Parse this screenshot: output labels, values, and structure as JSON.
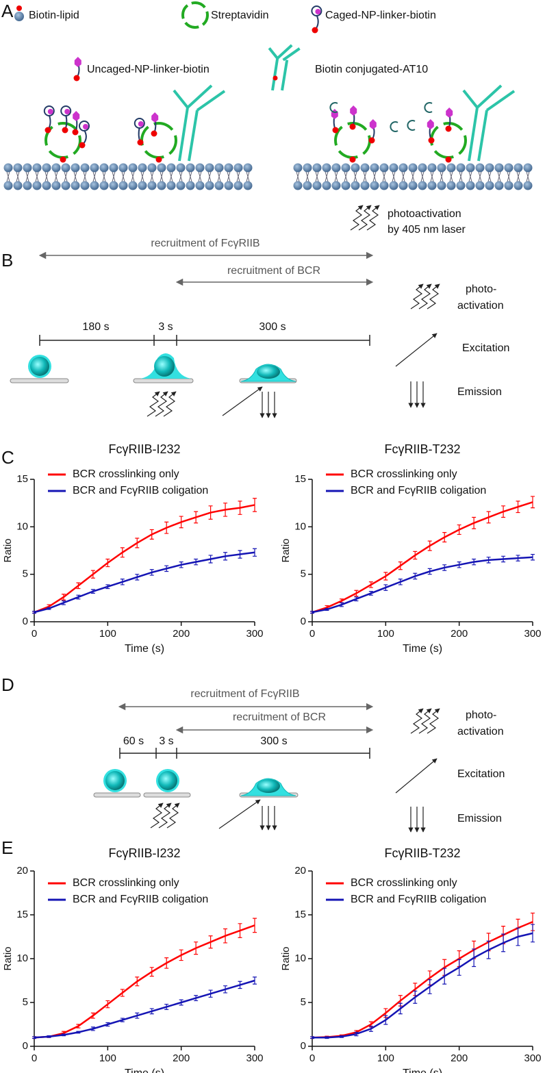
{
  "panels": {
    "a": "A",
    "b": "B",
    "c": "C",
    "d": "D",
    "e": "E"
  },
  "panel_a": {
    "legend": [
      "Biotin-lipid",
      "Streptavidin",
      "Caged-NP-linker-biotin",
      "Uncaged-NP-linker-biotin",
      "Biotin conjugated-AT10"
    ],
    "photo": [
      "photoactivation",
      "by 405 nm laser"
    ]
  },
  "panel_b": {
    "recruitment": [
      "recruitment of FcγRIIB",
      "recruitment of BCR"
    ],
    "durations": [
      "180 s",
      "3 s",
      "300 s"
    ],
    "key": [
      "photo-",
      "activation",
      "Excitation",
      "Emission"
    ]
  },
  "panel_d": {
    "recruitment": [
      "recruitment of FcγRIIB",
      "recruitment of BCR"
    ],
    "durations": [
      "60 s",
      "3 s",
      "300 s"
    ],
    "key": [
      "photo-",
      "activation",
      "Excitation",
      "Emission"
    ]
  },
  "chart_data": [
    {
      "type": "line",
      "title": "FcγRIIB-I232",
      "xlabel": "Time (s)",
      "ylabel": "Ratio",
      "legend": "upper left",
      "x": [
        0,
        20,
        40,
        60,
        80,
        100,
        120,
        140,
        160,
        180,
        200,
        220,
        240,
        260,
        280,
        300
      ],
      "xlim": [
        0,
        300
      ],
      "xticks": [
        0,
        100,
        200,
        300
      ],
      "ylim": [
        0,
        15
      ],
      "yticks": [
        0,
        5,
        10,
        15
      ],
      "series": [
        {
          "name": "BCR crosslinking only",
          "color": "#ff0000",
          "values": [
            1,
            1.6,
            2.6,
            3.8,
            5.0,
            6.2,
            7.3,
            8.3,
            9.2,
            9.9,
            10.5,
            11.0,
            11.5,
            11.8,
            12.0,
            12.3
          ],
          "errors": [
            0.1,
            0.2,
            0.3,
            0.3,
            0.4,
            0.4,
            0.5,
            0.5,
            0.5,
            0.6,
            0.6,
            0.6,
            0.7,
            0.7,
            0.7,
            0.7
          ]
        },
        {
          "name": "BCR and FcγRIIB coligation",
          "color": "#1414b4",
          "values": [
            1,
            1.4,
            2.0,
            2.6,
            3.2,
            3.7,
            4.2,
            4.7,
            5.2,
            5.6,
            6.0,
            6.3,
            6.6,
            6.9,
            7.1,
            7.3
          ],
          "errors": [
            0.1,
            0.1,
            0.2,
            0.2,
            0.2,
            0.2,
            0.3,
            0.3,
            0.3,
            0.3,
            0.3,
            0.3,
            0.4,
            0.4,
            0.4,
            0.4
          ]
        }
      ]
    },
    {
      "type": "line",
      "title": "FcγRIIB-T232",
      "xlabel": "Time (s)",
      "ylabel": "Ratio",
      "legend": "upper left",
      "x": [
        0,
        20,
        40,
        60,
        80,
        100,
        120,
        140,
        160,
        180,
        200,
        220,
        240,
        260,
        280,
        300
      ],
      "xlim": [
        0,
        300
      ],
      "xticks": [
        0,
        100,
        200,
        300
      ],
      "ylim": [
        0,
        15
      ],
      "yticks": [
        0,
        5,
        10,
        15
      ],
      "series": [
        {
          "name": "BCR crosslinking only",
          "color": "#ff0000",
          "values": [
            1,
            1.5,
            2.2,
            3.0,
            3.9,
            4.8,
            5.9,
            7.0,
            8.0,
            8.9,
            9.7,
            10.4,
            11.0,
            11.6,
            12.1,
            12.6
          ],
          "errors": [
            0.1,
            0.2,
            0.2,
            0.3,
            0.3,
            0.4,
            0.4,
            0.4,
            0.5,
            0.5,
            0.5,
            0.6,
            0.6,
            0.6,
            0.6,
            0.6
          ]
        },
        {
          "name": "BCR and FcγRIIB coligation",
          "color": "#1414b4",
          "values": [
            1,
            1.3,
            1.8,
            2.4,
            3.0,
            3.6,
            4.2,
            4.8,
            5.3,
            5.7,
            6.0,
            6.3,
            6.5,
            6.6,
            6.7,
            6.8
          ],
          "errors": [
            0.1,
            0.1,
            0.2,
            0.2,
            0.2,
            0.3,
            0.3,
            0.3,
            0.3,
            0.3,
            0.3,
            0.3,
            0.3,
            0.3,
            0.3,
            0.3
          ]
        }
      ]
    },
    {
      "type": "line",
      "title": "FcγRIIB-I232",
      "xlabel": "Time (s)",
      "ylabel": "Ratio",
      "legend": "upper left",
      "x": [
        0,
        20,
        40,
        60,
        80,
        100,
        120,
        140,
        160,
        180,
        200,
        220,
        240,
        260,
        280,
        300
      ],
      "xlim": [
        0,
        300
      ],
      "xticks": [
        0,
        100,
        200,
        300
      ],
      "ylim": [
        0,
        20
      ],
      "yticks": [
        0,
        5,
        10,
        15,
        20
      ],
      "series": [
        {
          "name": "BCR crosslinking only",
          "color": "#ff0000",
          "values": [
            1,
            1.1,
            1.5,
            2.3,
            3.5,
            4.8,
            6.1,
            7.4,
            8.5,
            9.5,
            10.4,
            11.2,
            11.9,
            12.6,
            13.2,
            13.8
          ],
          "errors": [
            0.1,
            0.1,
            0.2,
            0.2,
            0.3,
            0.4,
            0.4,
            0.5,
            0.5,
            0.6,
            0.6,
            0.7,
            0.7,
            0.8,
            0.8,
            0.8
          ]
        },
        {
          "name": "BCR and FcγRIIB coligation",
          "color": "#1414b4",
          "values": [
            1,
            1.1,
            1.3,
            1.6,
            2.0,
            2.5,
            3.0,
            3.5,
            4.0,
            4.5,
            5.0,
            5.5,
            6.0,
            6.5,
            7.0,
            7.5
          ],
          "errors": [
            0.1,
            0.1,
            0.1,
            0.1,
            0.2,
            0.2,
            0.2,
            0.3,
            0.3,
            0.3,
            0.3,
            0.3,
            0.4,
            0.4,
            0.4,
            0.4
          ]
        }
      ]
    },
    {
      "type": "line",
      "title": "FcγRIIB-T232",
      "xlabel": "Time (s)",
      "ylabel": "Ratio",
      "legend": "upper left",
      "x": [
        0,
        20,
        40,
        60,
        80,
        100,
        120,
        140,
        160,
        180,
        200,
        220,
        240,
        260,
        280,
        300
      ],
      "xlim": [
        0,
        300
      ],
      "xticks": [
        0,
        100,
        200,
        300
      ],
      "ylim": [
        0,
        20
      ],
      "yticks": [
        0,
        5,
        10,
        15,
        20
      ],
      "series": [
        {
          "name": "BCR crosslinking only",
          "color": "#ff0000",
          "values": [
            1,
            1.05,
            1.2,
            1.6,
            2.5,
            3.8,
            5.2,
            6.5,
            7.8,
            9.0,
            10.0,
            11.0,
            11.9,
            12.7,
            13.5,
            14.2
          ],
          "errors": [
            0.1,
            0.1,
            0.1,
            0.2,
            0.3,
            0.5,
            0.6,
            0.7,
            0.8,
            0.9,
            0.9,
            1.0,
            1.0,
            1.0,
            1.0,
            1.0
          ]
        },
        {
          "name": "BCR and FcγRIIB coligation",
          "color": "#1414b4",
          "values": [
            1,
            1.0,
            1.1,
            1.4,
            2.0,
            3.0,
            4.3,
            5.6,
            6.8,
            8.0,
            9.0,
            10.1,
            11.0,
            11.8,
            12.5,
            12.9
          ],
          "errors": [
            0.1,
            0.1,
            0.1,
            0.2,
            0.3,
            0.5,
            0.6,
            0.7,
            0.8,
            0.9,
            0.9,
            1.0,
            1.0,
            1.0,
            1.0,
            1.0
          ]
        }
      ]
    }
  ]
}
